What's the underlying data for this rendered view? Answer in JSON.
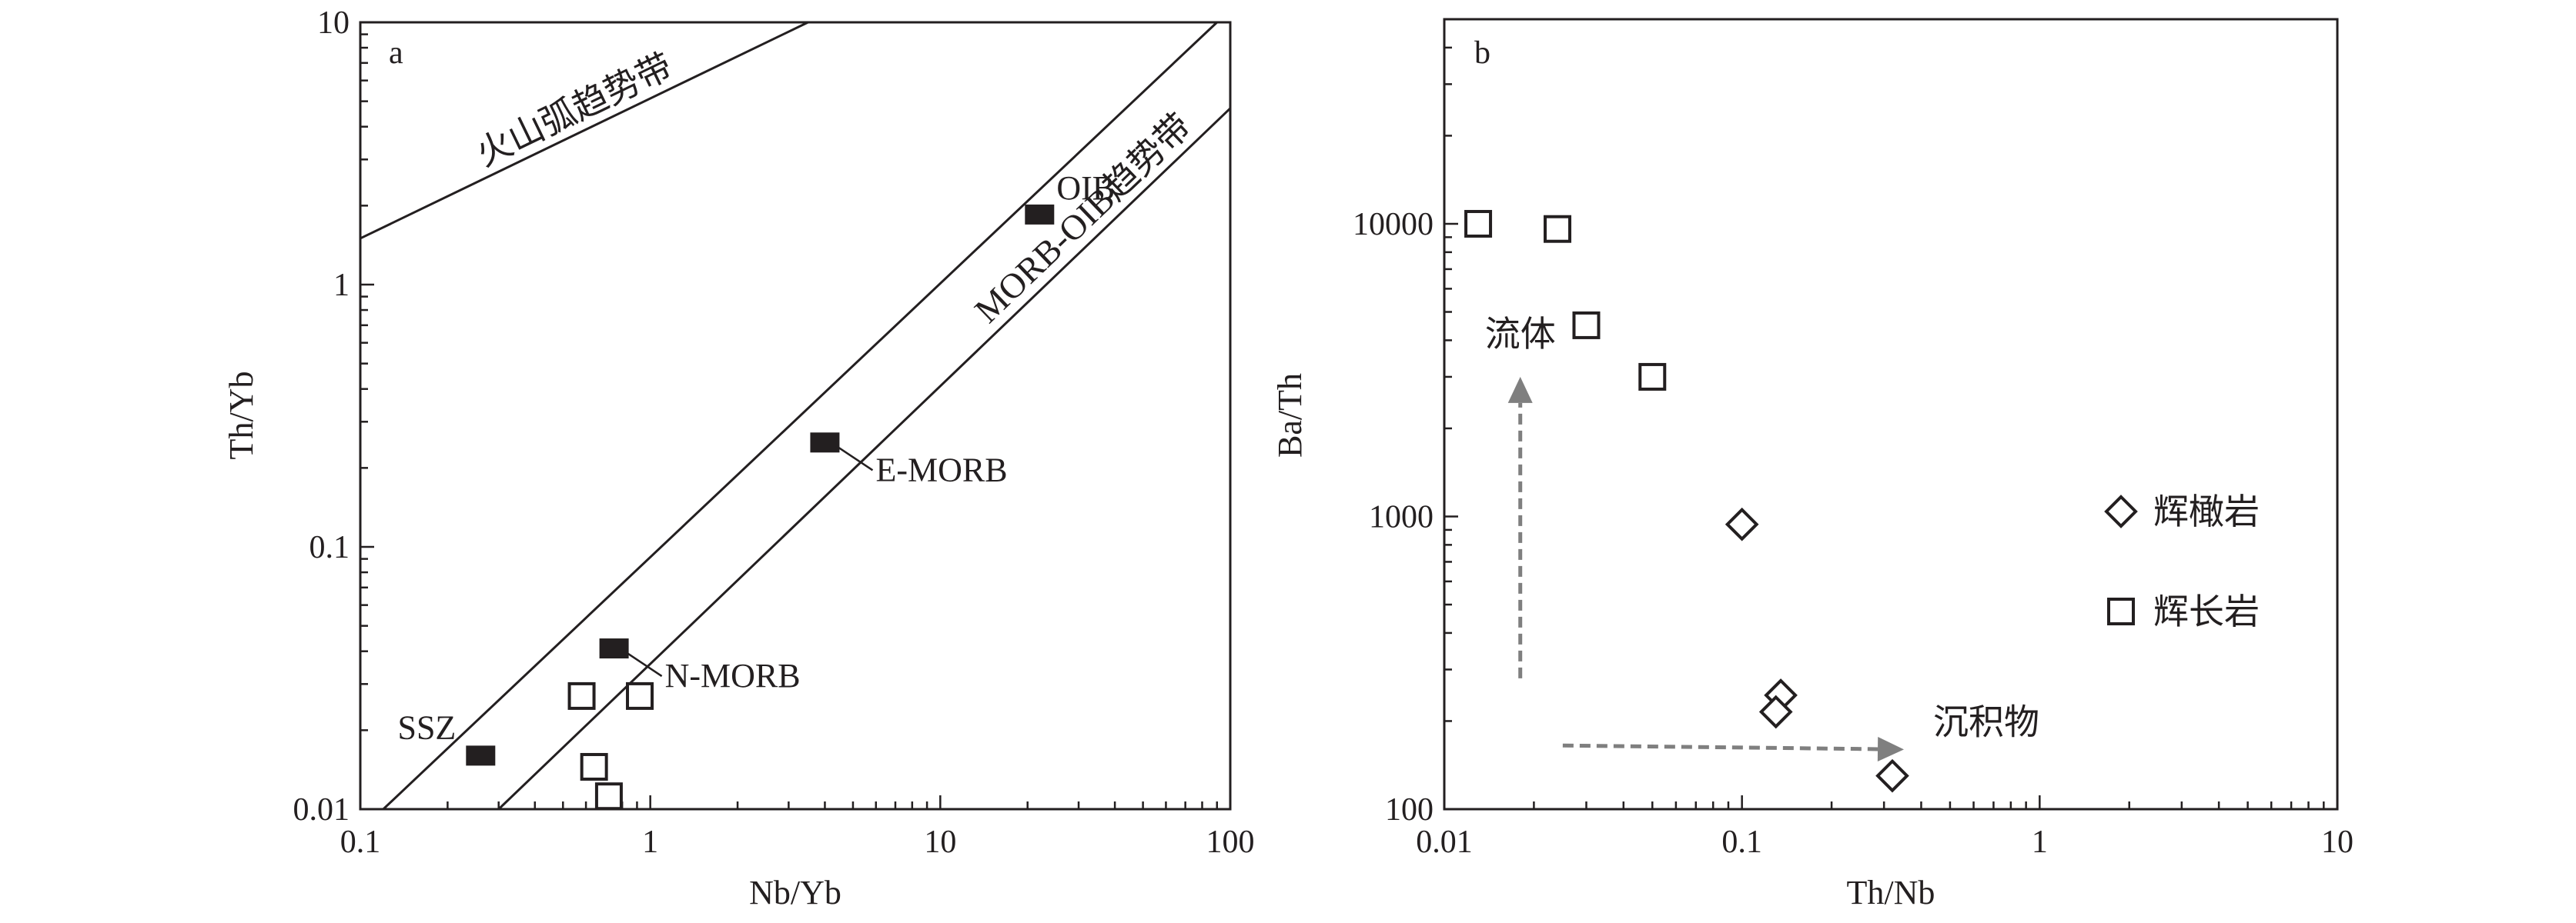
{
  "chart_data": [
    {
      "type": "scatter",
      "panel_label": "a",
      "xlabel": "Nb/Yb",
      "ylabel": "Th/Yb",
      "xscale": "log",
      "yscale": "log",
      "xlim": [
        0.1,
        100
      ],
      "ylim": [
        0.01,
        10
      ],
      "xticks": [
        "0.1",
        "1",
        "10",
        "100"
      ],
      "yticks": [
        "0.01",
        "0.1",
        "1",
        "10"
      ],
      "trend_lines": [
        {
          "label": "火山弧趋势带",
          "points": [
            [
              0.1,
              1.5
            ],
            [
              3.5,
              10
            ]
          ]
        },
        {
          "label": "",
          "points": [
            [
              0.12,
              0.01
            ],
            [
              90,
              10
            ]
          ]
        },
        {
          "label": "MORB-OIB趋势带",
          "points": [
            [
              0.3,
              0.01
            ],
            [
              100,
              4.7
            ]
          ]
        }
      ],
      "reference_points": [
        {
          "label": "OIB",
          "x": 22,
          "y": 1.85
        },
        {
          "label": "E-MORB",
          "x": 4.0,
          "y": 0.25
        },
        {
          "label": "N-MORB",
          "x": 0.75,
          "y": 0.041
        },
        {
          "label": "SSZ",
          "x": 0.26,
          "y": 0.016
        }
      ],
      "series": [
        {
          "marker": "open-square",
          "points": [
            [
              0.58,
              0.027
            ],
            [
              0.92,
              0.027
            ],
            [
              0.64,
              0.0145
            ],
            [
              0.72,
              0.0112
            ]
          ]
        }
      ]
    },
    {
      "type": "scatter",
      "panel_label": "b",
      "xlabel": "Th/Nb",
      "ylabel": "Ba/Th",
      "xscale": "log",
      "yscale": "log",
      "xlim": [
        0.01,
        10
      ],
      "ylim": [
        100,
        50000
      ],
      "xticks": [
        "0.01",
        "0.1",
        "1",
        "10"
      ],
      "yticks": [
        "100",
        "1000",
        "10000"
      ],
      "legend_position": "right",
      "series": [
        {
          "name": "辉橄岩",
          "marker": "open-diamond",
          "points": [
            [
              0.1,
              940
            ],
            [
              0.135,
              245
            ],
            [
              0.13,
              215
            ],
            [
              0.32,
              130
            ]
          ]
        },
        {
          "name": "辉长岩",
          "marker": "open-square",
          "points": [
            [
              0.013,
              10000
            ],
            [
              0.024,
              9600
            ],
            [
              0.03,
              4500
            ],
            [
              0.05,
              3000
            ]
          ]
        }
      ],
      "annotations": [
        {
          "text": "流体",
          "direction": "up",
          "from": [
            0.018,
            280
          ],
          "to": [
            0.018,
            3000
          ]
        },
        {
          "text": "沉积物",
          "direction": "right",
          "from": [
            0.025,
            165
          ],
          "to": [
            0.35,
            160
          ]
        }
      ]
    }
  ],
  "colors": {
    "ink": "#231f20",
    "arrow": "#7f7f7f"
  }
}
